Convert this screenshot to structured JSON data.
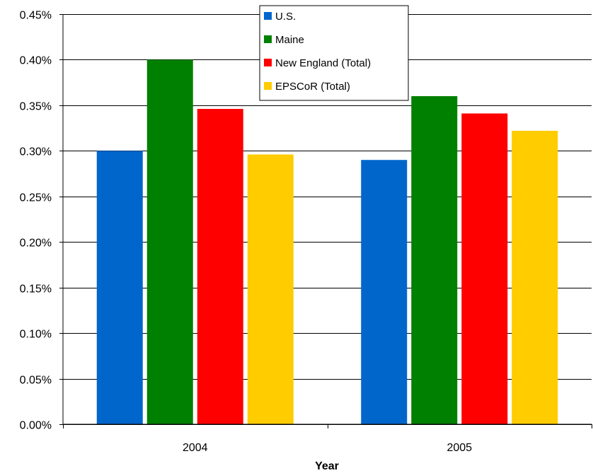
{
  "chart_data": {
    "type": "bar",
    "title": "",
    "xlabel": "Year",
    "ylabel": "",
    "categories": [
      "2004",
      "2005"
    ],
    "series": [
      {
        "name": "U.S.",
        "color": "#0066cc",
        "values": [
          0.3,
          0.29
        ]
      },
      {
        "name": "Maine",
        "color": "#008000",
        "values": [
          0.4,
          0.36
        ]
      },
      {
        "name": "New England (Total)",
        "color": "#ff0000",
        "values": [
          0.346,
          0.341
        ]
      },
      {
        "name": "EPSCoR (Total)",
        "color": "#ffcc00",
        "values": [
          0.296,
          0.322
        ]
      }
    ],
    "ylim": [
      0,
      0.45
    ],
    "yticks": [
      "0.00%",
      "0.05%",
      "0.10%",
      "0.15%",
      "0.20%",
      "0.25%",
      "0.30%",
      "0.35%",
      "0.40%",
      "0.45%"
    ],
    "grid": true,
    "legend_position": "top-center"
  }
}
